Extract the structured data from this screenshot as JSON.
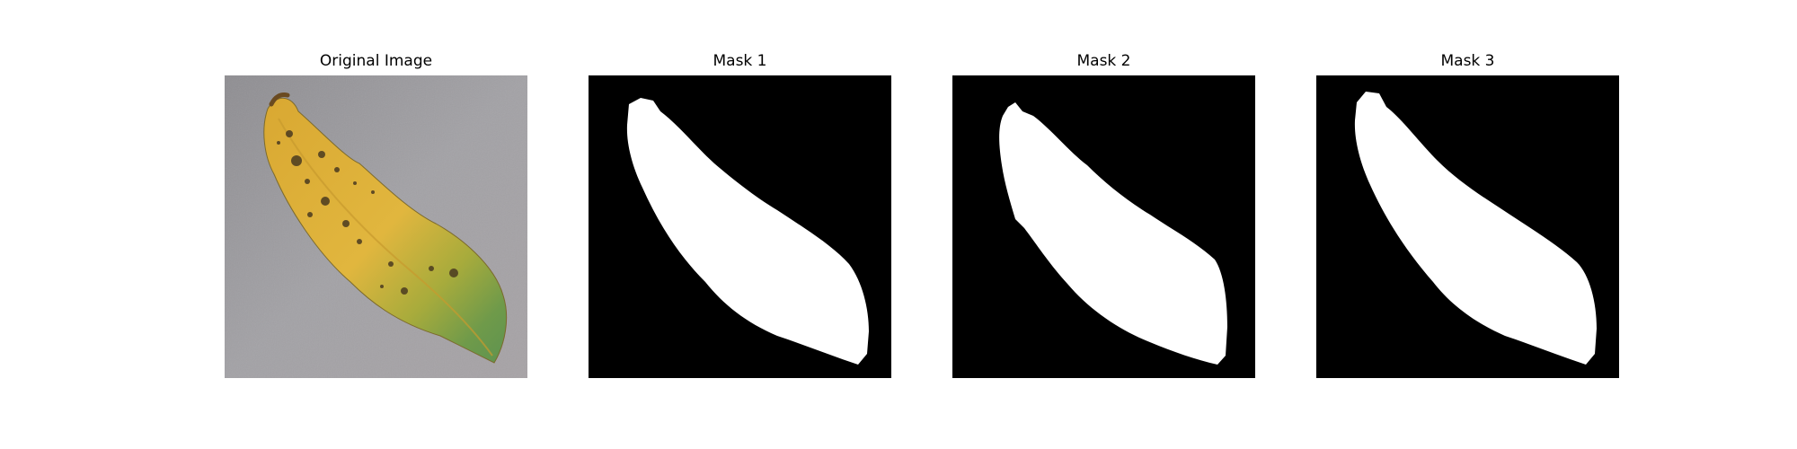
{
  "figure": {
    "panels": [
      {
        "title": "Original Image"
      },
      {
        "title": "Mask 1"
      },
      {
        "title": "Mask 2"
      },
      {
        "title": "Mask 3"
      }
    ]
  },
  "colors": {
    "mask_background": "#000000",
    "mask_foreground": "#ffffff",
    "surface_gray": "#9a999d",
    "leaf_yellow": "#e0b43a",
    "leaf_green": "#6f9a4a",
    "leaf_spots": "#4a3a20"
  }
}
